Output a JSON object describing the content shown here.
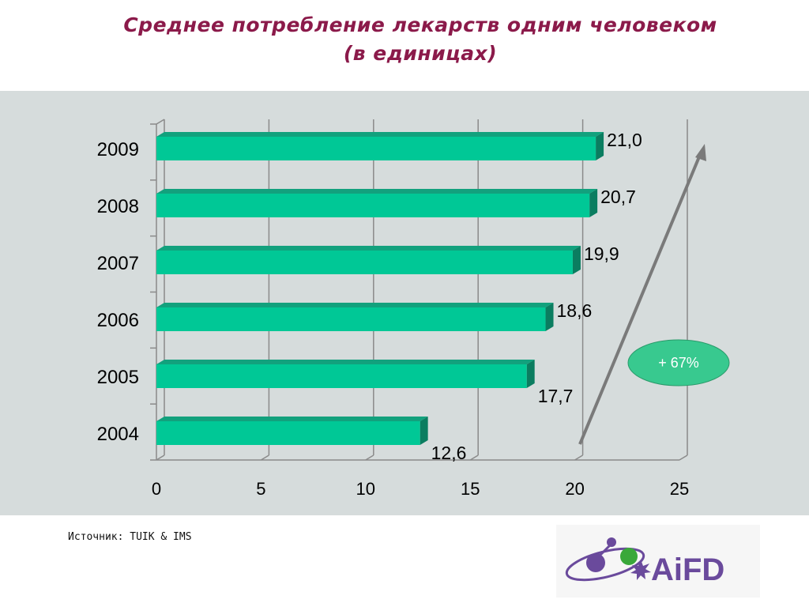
{
  "title_line1": "Среднее потребление лекарств одним человеком",
  "title_line2": "(в единицах)",
  "source": "Источник: TUIK & IMS",
  "growth_label": "+ 67%",
  "logo_text": "AiFD",
  "colors": {
    "bar_front": "#00c896",
    "bar_top": "#12a17d",
    "bar_side": "#0b7d60",
    "plot_bg": "#d6dcdc",
    "title": "#8b1a4a",
    "ellipse": "#38c98f",
    "logo_purple": "#6a4a9c",
    "logo_green": "#3aa83a"
  },
  "chart_data": {
    "type": "bar",
    "orientation": "horizontal",
    "categories": [
      "2009",
      "2008",
      "2007",
      "2006",
      "2005",
      "2004"
    ],
    "values": [
      21.0,
      20.7,
      19.9,
      18.6,
      17.7,
      12.6
    ],
    "value_labels": [
      "21,0",
      "20,7",
      "19,9",
      "18,6",
      "17,7",
      "12,6"
    ],
    "xlim": [
      0,
      25
    ],
    "xticks": [
      0,
      5,
      10,
      15,
      20,
      25
    ],
    "grid": true,
    "title": "Среднее потребление лекарств одним человеком (в единицах)",
    "annotation": "+ 67%"
  }
}
